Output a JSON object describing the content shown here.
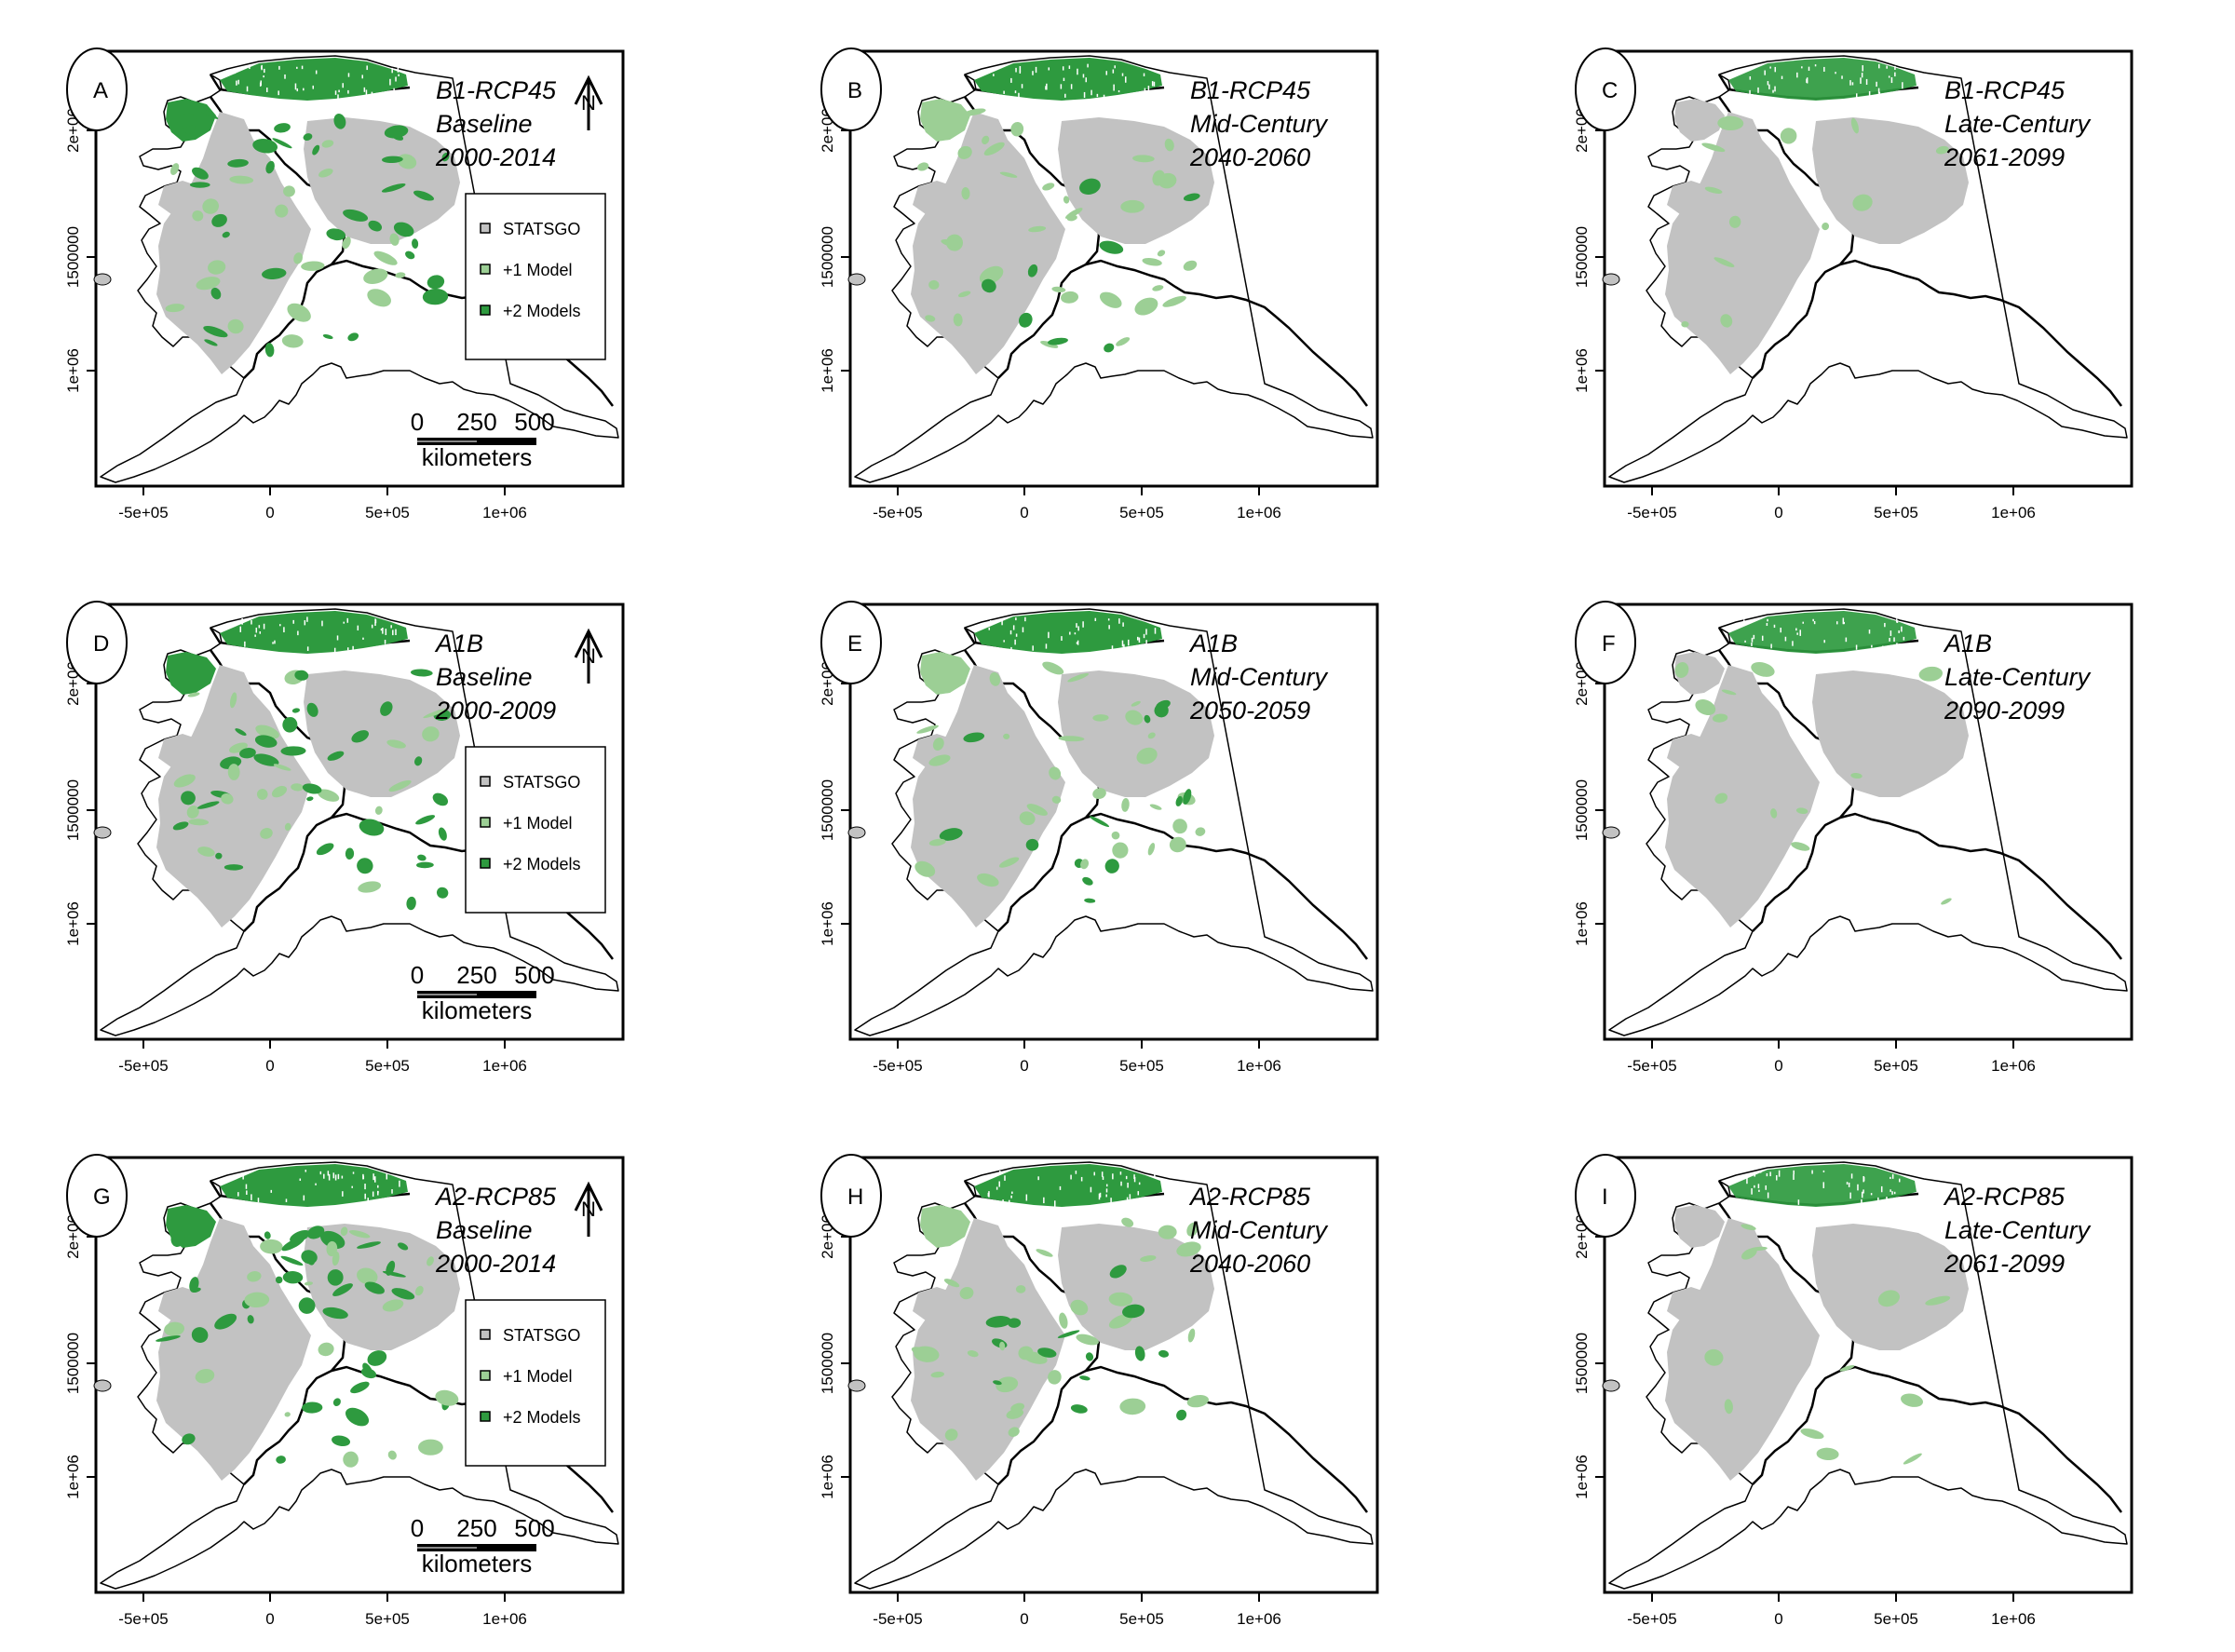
{
  "figure": {
    "axes": {
      "x_ticks": [
        "-5e+05",
        "0",
        "5e+05",
        "1e+06"
      ],
      "y_ticks": [
        "1e+06",
        "1500000",
        "2e+06"
      ]
    },
    "legend": {
      "items": [
        {
          "label": "STATSGO",
          "color": "#c2c2c2"
        },
        {
          "label": "+1 Model",
          "color": "#9ccf95"
        },
        {
          "label": "+2 Models",
          "color": "#2e9a3f"
        }
      ]
    },
    "scale_bar": {
      "ticks": [
        "0",
        "250",
        "500"
      ],
      "unit": "kilometers"
    },
    "north_arrow": {
      "label": "N"
    },
    "panels": [
      {
        "letter": "A",
        "scenario": "B1-RCP45",
        "period": "Baseline",
        "years": "2000-2014",
        "level": 3
      },
      {
        "letter": "B",
        "scenario": "B1-RCP45",
        "period": "Mid-Century",
        "years": "2040-2060",
        "level": 1
      },
      {
        "letter": "C",
        "scenario": "B1-RCP45",
        "period": "Late-Century",
        "years": "2061-2099",
        "level": 0
      },
      {
        "letter": "D",
        "scenario": "A1B",
        "period": "Baseline",
        "years": "2000-2009",
        "level": 3
      },
      {
        "letter": "E",
        "scenario": "A1B",
        "period": "Mid-Century",
        "years": "2050-2059",
        "level": 1
      },
      {
        "letter": "F",
        "scenario": "A1B",
        "period": "Late-Century",
        "years": "2090-2099",
        "level": 0
      },
      {
        "letter": "G",
        "scenario": "A2-RCP85",
        "period": "Baseline",
        "years": "2000-2014",
        "level": 3
      },
      {
        "letter": "H",
        "scenario": "A2-RCP85",
        "period": "Mid-Century",
        "years": "2040-2060",
        "level": 1
      },
      {
        "letter": "I",
        "scenario": "A2-RCP85",
        "period": "Late-Century",
        "years": "2061-2099",
        "level": 0
      }
    ]
  }
}
